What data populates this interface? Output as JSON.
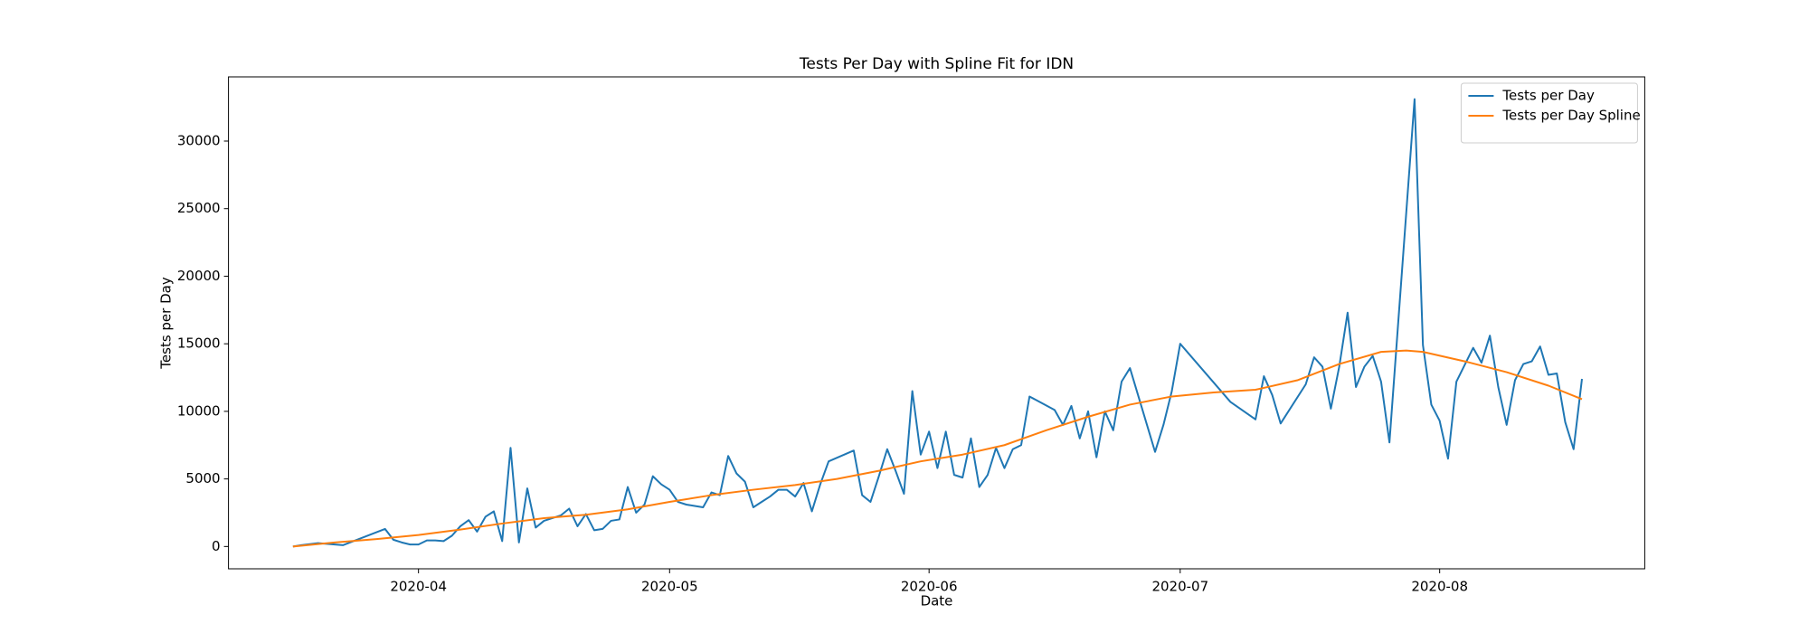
{
  "chart_data": {
    "type": "line",
    "title": "Tests Per Day with Spline Fit for IDN",
    "x_label": "Date",
    "y_label": "Tests per Day",
    "xlim": [
      69.3,
      238.5
    ],
    "ylim": [
      -1650,
      34750
    ],
    "xticks": [
      {
        "value": 92,
        "label": "2020-04"
      },
      {
        "value": 122,
        "label": "2020-05"
      },
      {
        "value": 153,
        "label": "2020-06"
      },
      {
        "value": 183,
        "label": "2020-07"
      },
      {
        "value": 214,
        "label": "2020-08"
      }
    ],
    "yticks": [
      0,
      5000,
      10000,
      15000,
      20000,
      25000,
      30000
    ],
    "legend": "upper right",
    "series": [
      {
        "name": "Tests per Day",
        "color": "#1f77b4",
        "x": [
          77,
          78,
          80,
          81,
          83,
          88,
          89,
          90,
          91,
          92,
          93,
          94,
          95,
          96,
          97,
          98,
          99,
          100,
          101,
          102,
          103,
          104,
          105,
          106,
          107,
          108,
          109,
          110,
          111,
          112,
          113,
          114,
          115,
          116,
          117,
          118,
          119,
          120,
          121,
          122,
          123,
          124,
          125,
          126,
          127,
          128,
          129,
          130,
          131,
          132,
          133,
          134,
          135,
          136,
          137,
          138,
          139,
          140,
          141,
          144,
          145,
          146,
          147,
          148,
          149,
          150,
          151,
          152,
          153,
          154,
          155,
          156,
          157,
          158,
          159,
          160,
          161,
          162,
          163,
          164,
          165,
          168,
          169,
          170,
          171,
          172,
          173,
          174,
          175,
          176,
          177,
          180,
          181,
          182,
          183,
          189,
          192,
          193,
          194,
          195,
          198,
          199,
          200,
          201,
          202,
          203,
          204,
          205,
          206,
          207,
          208,
          211,
          212,
          213,
          214,
          215,
          216,
          218,
          219,
          220,
          221,
          222,
          223,
          224,
          225,
          226,
          227,
          228,
          229,
          230,
          231
        ],
        "values": [
          0,
          100,
          250,
          200,
          100,
          1300,
          500,
          300,
          150,
          150,
          450,
          450,
          400,
          800,
          1500,
          1950,
          1100,
          2200,
          2600,
          400,
          7300,
          300,
          4300,
          1400,
          1900,
          2100,
          2300,
          2800,
          1500,
          2400,
          1200,
          1300,
          1900,
          2000,
          4400,
          2500,
          3100,
          5200,
          4600,
          4200,
          3300,
          3100,
          3000,
          2900,
          4000,
          3800,
          6700,
          5400,
          4800,
          2900,
          3300,
          3700,
          4200,
          4200,
          3700,
          4700,
          2600,
          4600,
          6300,
          7100,
          3800,
          3300,
          5200,
          7200,
          5600,
          3900,
          11500,
          6800,
          8500,
          5800,
          8500,
          5300,
          5100,
          8000,
          4400,
          5300,
          7300,
          5800,
          7200,
          7500,
          11100,
          10100,
          9000,
          10400,
          8000,
          10000,
          6600,
          10000,
          8600,
          12200,
          13200,
          7000,
          9000,
          11500,
          15000,
          10700,
          9400,
          12600,
          11200,
          9100,
          12000,
          14000,
          13300,
          10200,
          13300,
          17300,
          11800,
          13300,
          14100,
          12200,
          7700,
          33100,
          14900,
          10500,
          9300,
          6500,
          12200,
          14700,
          13600,
          15600,
          11800,
          9000,
          12300,
          13500,
          13700,
          14800,
          12700,
          12800,
          9200,
          7200,
          12400
        ]
      },
      {
        "name": "Tests per Day Spline",
        "color": "#ff7f0e",
        "x": [
          77,
          82,
          87,
          92,
          97,
          102,
          107,
          112,
          117,
          122,
          127,
          132,
          137,
          142,
          147,
          152,
          157,
          162,
          167,
          172,
          177,
          182,
          187,
          192,
          197,
          202,
          207,
          210,
          212,
          217,
          222,
          227,
          231
        ],
        "values": [
          0,
          300,
          550,
          850,
          1250,
          1700,
          2100,
          2350,
          2750,
          3300,
          3800,
          4200,
          4550,
          5000,
          5600,
          6300,
          6800,
          7500,
          8600,
          9600,
          10500,
          11100,
          11400,
          11600,
          12300,
          13500,
          14400,
          14500,
          14400,
          13700,
          12900,
          11900,
          10900
        ]
      }
    ]
  }
}
